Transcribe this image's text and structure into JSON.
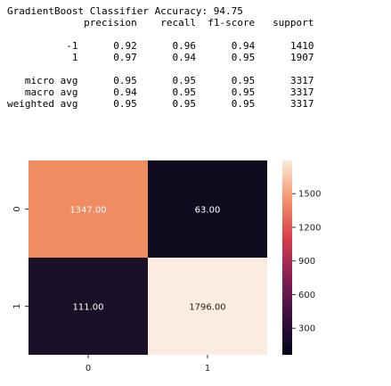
{
  "report": {
    "title": "GradientBoost Classifier Accuracy: 94.75",
    "columns": [
      "precision",
      "recall",
      "f1-score",
      "support"
    ],
    "rows": [
      {
        "label": "-1",
        "values": [
          "0.92",
          "0.96",
          "0.94",
          "1410"
        ]
      },
      {
        "label": "1",
        "values": [
          "0.97",
          "0.94",
          "0.95",
          "1907"
        ]
      },
      {
        "label": "",
        "values": [
          "",
          "",
          "",
          ""
        ]
      },
      {
        "label": "micro avg",
        "values": [
          "0.95",
          "0.95",
          "0.95",
          "3317"
        ]
      },
      {
        "label": "macro avg",
        "values": [
          "0.94",
          "0.95",
          "0.95",
          "3317"
        ]
      },
      {
        "label": "weighted avg",
        "values": [
          "0.95",
          "0.95",
          "0.95",
          "3317"
        ]
      }
    ]
  },
  "chart_data": {
    "type": "heatmap",
    "x_categories": [
      "0",
      "1"
    ],
    "y_categories": [
      "0",
      "1"
    ],
    "values": [
      [
        1347.0,
        63.0
      ],
      [
        111.0,
        1796.0
      ]
    ],
    "cell_labels": [
      [
        "1347.00",
        "63.00"
      ],
      [
        "111.00",
        "1796.00"
      ]
    ],
    "colorbar": {
      "min": 63,
      "max": 1796,
      "ticks": [
        300,
        600,
        900,
        1200,
        1500
      ],
      "tick_labels": [
        "300",
        "600",
        "900",
        "1200",
        "1500"
      ]
    },
    "colors": {
      "low": "#0f0a1e",
      "high": "#fbebe0",
      "c_1347": "#f08c62",
      "c_111": "#1a1028"
    }
  }
}
